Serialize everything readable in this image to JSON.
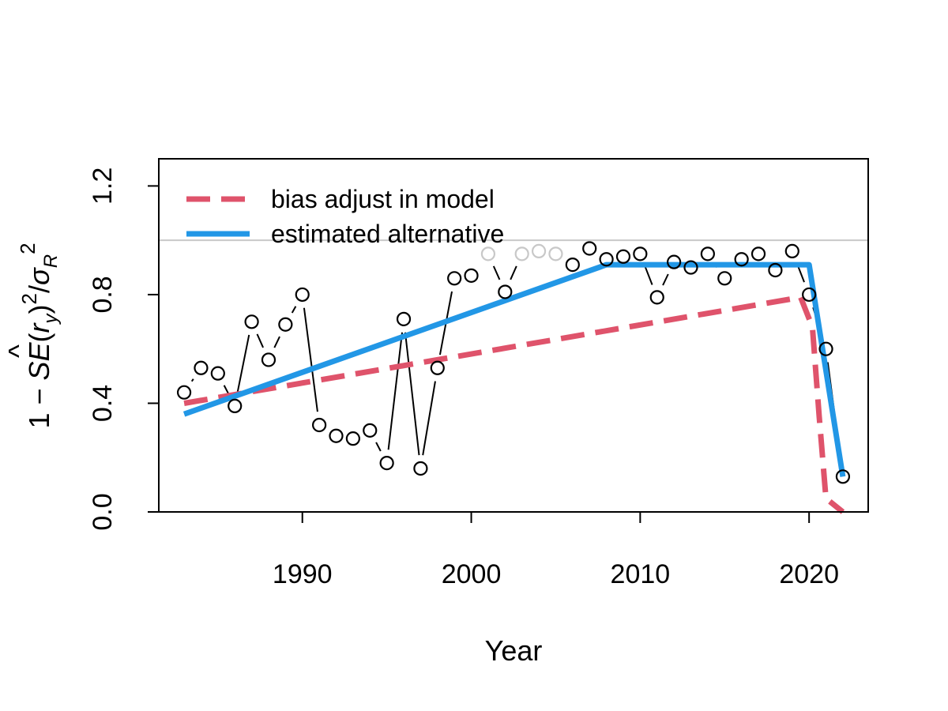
{
  "chart_data": {
    "type": "line",
    "xlabel": "Year",
    "ylabel": {
      "prefix": "1 − ",
      "se": "SE",
      "r": "r",
      "hat": "^",
      "r_sub": "y",
      "sq": "2",
      "slash": "/",
      "sigma": "σ",
      "sigma_sub": "R",
      "sq2": "2"
    },
    "xlim": [
      1981.5,
      2023.5
    ],
    "ylim": [
      0.0,
      1.3
    ],
    "x_ticks": [
      1990,
      2000,
      2010,
      2020
    ],
    "x_tick_labels": [
      "1990",
      "2000",
      "2010",
      "2020"
    ],
    "y_ticks": [
      0.0,
      0.4,
      0.8,
      1.2
    ],
    "y_tick_labels": [
      "0.0",
      "0.4",
      "0.8",
      "1.2"
    ],
    "reference_line": {
      "y": 1.0,
      "color": "#c8c8c8"
    },
    "legend": {
      "placement": "top-left",
      "entries": [
        {
          "label": "bias adjust in model",
          "color": "#df536b",
          "style": "dashed"
        },
        {
          "label": "estimated alternative",
          "color": "#2297e6",
          "style": "solid"
        }
      ]
    },
    "points": {
      "x": [
        1983,
        1984,
        1985,
        1986,
        1987,
        1988,
        1989,
        1990,
        1991,
        1992,
        1993,
        1994,
        1995,
        1996,
        1997,
        1998,
        1999,
        2000,
        2001,
        2002,
        2003,
        2004,
        2005,
        2006,
        2007,
        2008,
        2009,
        2010,
        2011,
        2012,
        2013,
        2014,
        2015,
        2016,
        2017,
        2018,
        2019,
        2020,
        2021,
        2022
      ],
      "y": [
        0.44,
        0.53,
        0.51,
        0.39,
        0.7,
        0.56,
        0.69,
        0.8,
        0.32,
        0.28,
        0.27,
        0.3,
        0.18,
        0.71,
        0.16,
        0.53,
        0.86,
        0.87,
        0.95,
        0.81,
        0.95,
        0.96,
        0.95,
        0.91,
        0.97,
        0.93,
        0.94,
        0.95,
        0.79,
        0.92,
        0.9,
        0.95,
        0.86,
        0.93,
        0.95,
        0.89,
        0.96,
        0.8,
        0.6,
        0.13
      ],
      "gray_years": [
        2001,
        2003,
        2004,
        2005
      ],
      "gray_color": "#c8c8c8",
      "color": "#000000"
    },
    "series": [
      {
        "name": "bias adjust in model",
        "color": "#df536b",
        "style": "dashed",
        "x": [
          1983,
          2019.5,
          2020.2,
          2020.6,
          2021,
          2022
        ],
        "y": [
          0.4,
          0.79,
          0.68,
          0.35,
          0.05,
          0.0
        ]
      },
      {
        "name": "estimated alternative",
        "color": "#2297e6",
        "style": "solid",
        "x": [
          1983,
          2008,
          2020,
          2022
        ],
        "y": [
          0.36,
          0.91,
          0.91,
          0.13
        ]
      }
    ]
  }
}
